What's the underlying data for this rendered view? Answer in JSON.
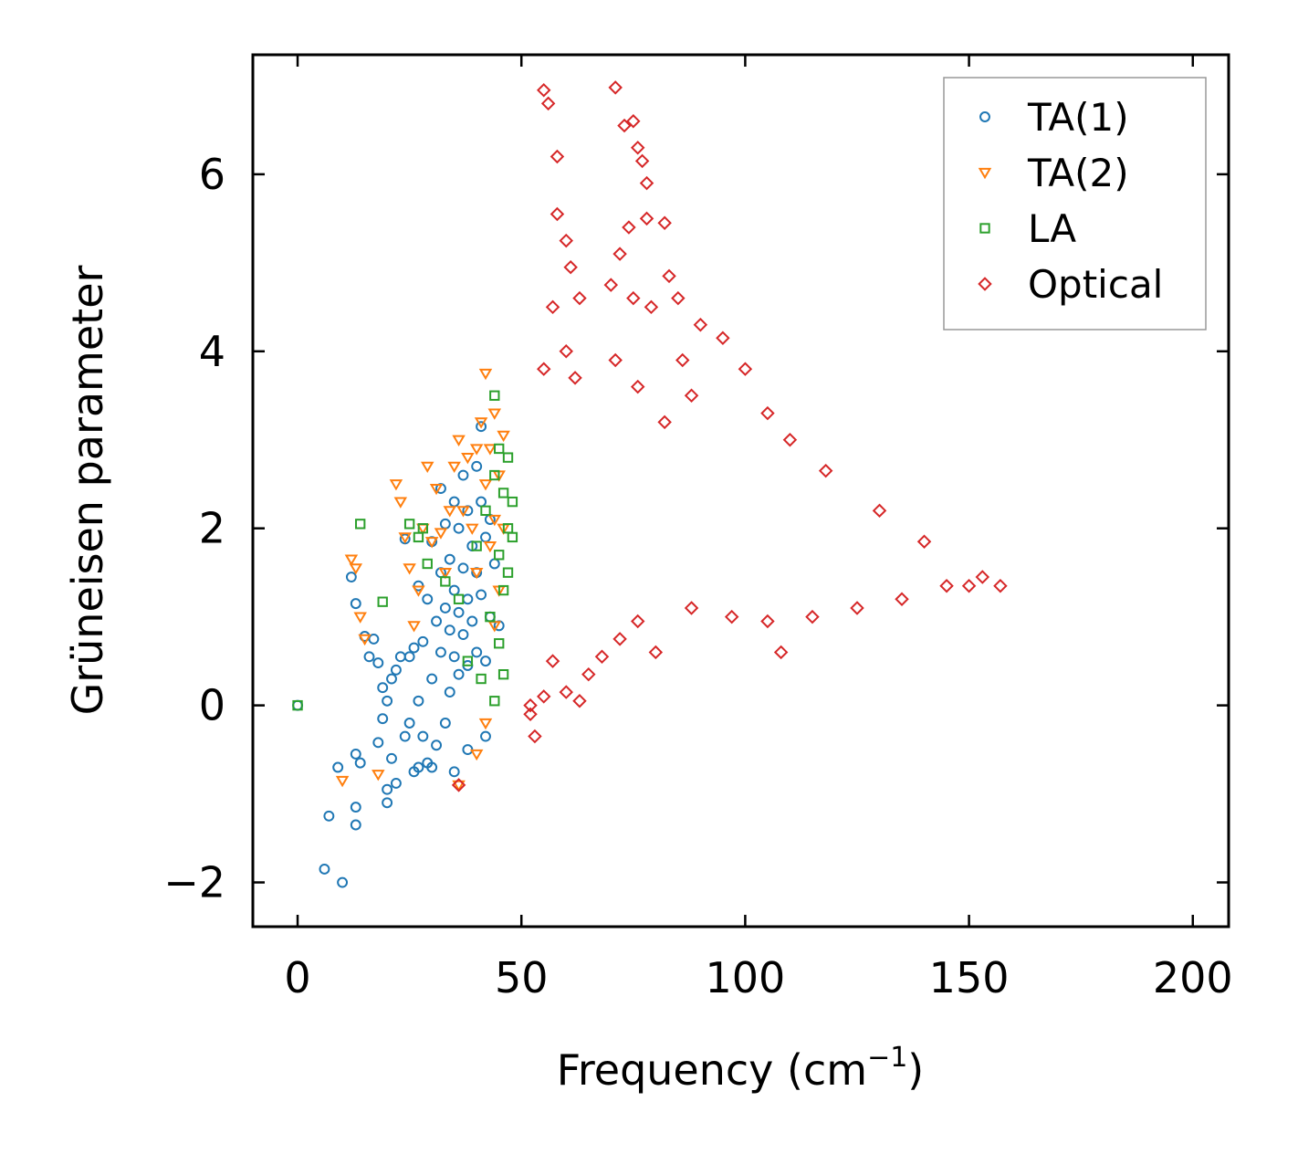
{
  "chart_data": {
    "type": "scatter",
    "title": "",
    "xlabel": "Frequency (cm",
    "xlabel_sup": "−1",
    "xlabel_close": ")",
    "ylabel": "Grüneisen parameter",
    "xlim": [
      -10,
      208
    ],
    "ylim": [
      -2.5,
      7.35
    ],
    "xticks": [
      0,
      50,
      100,
      150,
      200
    ],
    "yticks": [
      -2,
      0,
      2,
      4,
      6
    ],
    "xtick_labels": [
      "0",
      "50",
      "100",
      "150",
      "200"
    ],
    "ytick_labels": [
      "−2",
      "0",
      "2",
      "4",
      "6"
    ],
    "grid": false,
    "legend_position": "top-right",
    "series": [
      {
        "name": "TA(1)",
        "marker": "circle",
        "color": "#1f77b4",
        "points": [
          [
            0,
            0
          ],
          [
            6,
            -1.85
          ],
          [
            7,
            -1.25
          ],
          [
            9,
            -0.7
          ],
          [
            10,
            -2.0
          ],
          [
            12,
            1.45
          ],
          [
            13,
            1.15
          ],
          [
            13,
            -0.55
          ],
          [
            13,
            -1.35
          ],
          [
            13,
            -1.15
          ],
          [
            14,
            -0.65
          ],
          [
            15,
            0.78
          ],
          [
            16,
            0.55
          ],
          [
            17,
            0.75
          ],
          [
            18,
            0.48
          ],
          [
            18,
            -0.42
          ],
          [
            19,
            0.2
          ],
          [
            19,
            -0.15
          ],
          [
            20,
            0.05
          ],
          [
            20,
            -0.95
          ],
          [
            20,
            -1.1
          ],
          [
            21,
            0.3
          ],
          [
            21,
            -0.6
          ],
          [
            22,
            0.4
          ],
          [
            22,
            -0.88
          ],
          [
            23,
            0.55
          ],
          [
            24,
            1.88
          ],
          [
            24,
            -0.35
          ],
          [
            25,
            0.55
          ],
          [
            25,
            -0.2
          ],
          [
            26,
            0.65
          ],
          [
            26,
            -0.75
          ],
          [
            27,
            1.35
          ],
          [
            27,
            0.05
          ],
          [
            27,
            -0.7
          ],
          [
            28,
            0.72
          ],
          [
            28,
            -0.35
          ],
          [
            29,
            1.2
          ],
          [
            29,
            -0.65
          ],
          [
            30,
            1.85
          ],
          [
            30,
            0.3
          ],
          [
            30,
            -0.7
          ],
          [
            31,
            0.95
          ],
          [
            31,
            -0.45
          ],
          [
            32,
            1.5
          ],
          [
            32,
            0.6
          ],
          [
            32,
            2.45
          ],
          [
            33,
            2.05
          ],
          [
            33,
            1.1
          ],
          [
            33,
            -0.2
          ],
          [
            34,
            1.65
          ],
          [
            34,
            0.85
          ],
          [
            34,
            0.15
          ],
          [
            35,
            2.3
          ],
          [
            35,
            1.3
          ],
          [
            35,
            0.55
          ],
          [
            35,
            -0.75
          ],
          [
            36,
            2.0
          ],
          [
            36,
            1.05
          ],
          [
            36,
            0.35
          ],
          [
            37,
            2.6
          ],
          [
            37,
            1.55
          ],
          [
            37,
            0.8
          ],
          [
            38,
            2.2
          ],
          [
            38,
            1.2
          ],
          [
            38,
            0.45
          ],
          [
            38,
            -0.5
          ],
          [
            39,
            1.8
          ],
          [
            39,
            0.95
          ],
          [
            40,
            2.7
          ],
          [
            40,
            1.5
          ],
          [
            40,
            0.6
          ],
          [
            41,
            3.15
          ],
          [
            41,
            2.3
          ],
          [
            41,
            1.25
          ],
          [
            42,
            1.9
          ],
          [
            42,
            0.5
          ],
          [
            42,
            -0.35
          ],
          [
            43,
            2.1
          ],
          [
            43,
            1.0
          ],
          [
            44,
            1.6
          ],
          [
            45,
            0.9
          ]
        ]
      },
      {
        "name": "TA(2)",
        "marker": "triangle-down",
        "color": "#ff7f0e",
        "points": [
          [
            12,
            1.65
          ],
          [
            13,
            1.55
          ],
          [
            14,
            1.0
          ],
          [
            15,
            0.75
          ],
          [
            10,
            -0.85
          ],
          [
            18,
            -0.78
          ],
          [
            22,
            2.5
          ],
          [
            23,
            2.3
          ],
          [
            24,
            1.9
          ],
          [
            25,
            1.55
          ],
          [
            26,
            0.9
          ],
          [
            27,
            1.3
          ],
          [
            28,
            2.0
          ],
          [
            29,
            2.7
          ],
          [
            30,
            1.85
          ],
          [
            31,
            2.45
          ],
          [
            32,
            1.95
          ],
          [
            33,
            1.5
          ],
          [
            34,
            2.2
          ],
          [
            35,
            2.7
          ],
          [
            36,
            3.0
          ],
          [
            37,
            2.2
          ],
          [
            38,
            2.8
          ],
          [
            39,
            2.0
          ],
          [
            40,
            2.9
          ],
          [
            40,
            1.5
          ],
          [
            41,
            3.2
          ],
          [
            42,
            3.75
          ],
          [
            42,
            2.5
          ],
          [
            43,
            2.9
          ],
          [
            43,
            1.8
          ],
          [
            44,
            3.3
          ],
          [
            44,
            2.1
          ],
          [
            44,
            0.9
          ],
          [
            45,
            2.6
          ],
          [
            45,
            1.3
          ],
          [
            46,
            3.05
          ],
          [
            46,
            2.0
          ],
          [
            36,
            -0.9
          ],
          [
            40,
            -0.55
          ],
          [
            42,
            -0.2
          ]
        ]
      },
      {
        "name": "LA",
        "marker": "square",
        "color": "#2ca02c",
        "points": [
          [
            0,
            0
          ],
          [
            14,
            2.05
          ],
          [
            19,
            1.17
          ],
          [
            25,
            2.05
          ],
          [
            27,
            1.9
          ],
          [
            28,
            2.0
          ],
          [
            29,
            1.6
          ],
          [
            33,
            1.4
          ],
          [
            36,
            1.2
          ],
          [
            38,
            0.5
          ],
          [
            40,
            1.8
          ],
          [
            41,
            0.3
          ],
          [
            42,
            2.2
          ],
          [
            43,
            1.0
          ],
          [
            44,
            3.5
          ],
          [
            44,
            2.6
          ],
          [
            44,
            0.05
          ],
          [
            45,
            2.9
          ],
          [
            45,
            1.7
          ],
          [
            45,
            0.7
          ],
          [
            46,
            2.4
          ],
          [
            46,
            1.3
          ],
          [
            46,
            0.35
          ],
          [
            47,
            2.8
          ],
          [
            47,
            2.0
          ],
          [
            47,
            1.5
          ],
          [
            48,
            2.3
          ],
          [
            48,
            1.9
          ]
        ]
      },
      {
        "name": "Optical",
        "marker": "diamond",
        "color": "#d62728",
        "points": [
          [
            36,
            -0.9
          ],
          [
            55,
            6.95
          ],
          [
            56,
            6.8
          ],
          [
            58,
            6.2
          ],
          [
            58,
            5.55
          ],
          [
            60,
            5.25
          ],
          [
            61,
            4.95
          ],
          [
            63,
            4.6
          ],
          [
            57,
            4.5
          ],
          [
            60,
            4.0
          ],
          [
            62,
            3.7
          ],
          [
            71,
            6.98
          ],
          [
            73,
            6.55
          ],
          [
            75,
            6.6
          ],
          [
            76,
            6.3
          ],
          [
            77,
            6.15
          ],
          [
            78,
            5.9
          ],
          [
            74,
            5.4
          ],
          [
            78,
            5.5
          ],
          [
            82,
            5.45
          ],
          [
            72,
            5.1
          ],
          [
            70,
            4.75
          ],
          [
            75,
            4.6
          ],
          [
            79,
            4.5
          ],
          [
            71,
            3.9
          ],
          [
            76,
            3.6
          ],
          [
            55,
            3.8
          ],
          [
            52,
            0.0
          ],
          [
            52,
            -0.1
          ],
          [
            53,
            -0.35
          ],
          [
            55,
            0.1
          ],
          [
            57,
            0.5
          ],
          [
            60,
            0.15
          ],
          [
            63,
            0.05
          ],
          [
            65,
            0.35
          ],
          [
            68,
            0.55
          ],
          [
            72,
            0.75
          ],
          [
            76,
            0.95
          ],
          [
            80,
            0.6
          ],
          [
            88,
            1.1
          ],
          [
            97,
            1.0
          ],
          [
            105,
            0.95
          ],
          [
            108,
            0.6
          ],
          [
            115,
            1.0
          ],
          [
            125,
            1.1
          ],
          [
            135,
            1.2
          ],
          [
            145,
            1.35
          ],
          [
            150,
            1.35
          ],
          [
            153,
            1.45
          ],
          [
            157,
            1.35
          ],
          [
            140,
            1.85
          ],
          [
            130,
            2.2
          ],
          [
            118,
            2.65
          ],
          [
            110,
            3.0
          ],
          [
            105,
            3.3
          ],
          [
            100,
            3.8
          ],
          [
            95,
            4.15
          ],
          [
            90,
            4.3
          ],
          [
            85,
            4.6
          ],
          [
            83,
            4.85
          ],
          [
            86,
            3.9
          ],
          [
            88,
            3.5
          ],
          [
            82,
            3.2
          ]
        ]
      }
    ]
  }
}
